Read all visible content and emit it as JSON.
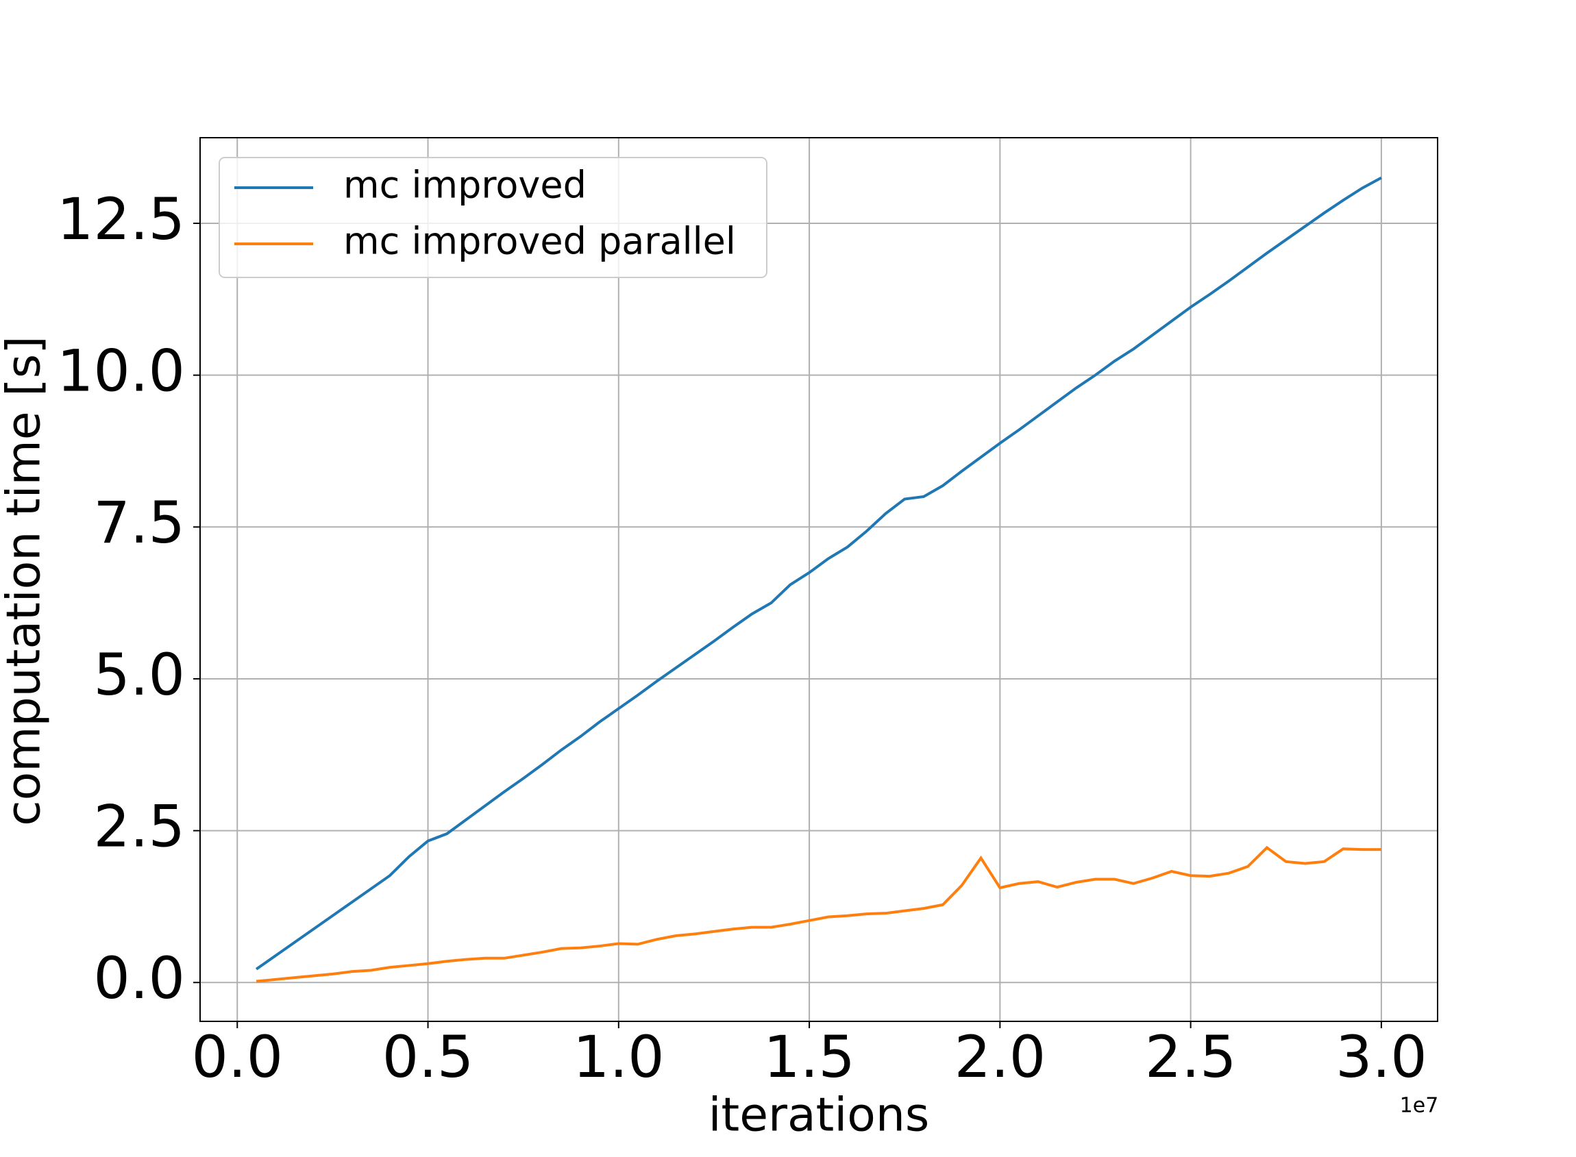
{
  "chart_data": {
    "type": "line",
    "xlabel": "iterations",
    "ylabel": "computation time [s]",
    "x_offset_label": "1e7",
    "x": [
      0.05,
      0.1,
      0.15,
      0.2,
      0.25,
      0.3,
      0.35,
      0.4,
      0.45,
      0.5,
      0.55,
      0.6,
      0.65,
      0.7,
      0.75,
      0.8,
      0.85,
      0.9,
      0.95,
      1.0,
      1.05,
      1.1,
      1.15,
      1.2,
      1.25,
      1.3,
      1.35,
      1.4,
      1.45,
      1.5,
      1.55,
      1.6,
      1.65,
      1.7,
      1.75,
      1.8,
      1.85,
      1.9,
      1.95,
      2.0,
      2.05,
      2.1,
      2.15,
      2.2,
      2.25,
      2.3,
      2.35,
      2.4,
      2.45,
      2.5,
      2.55,
      2.6,
      2.65,
      2.7,
      2.75,
      2.8,
      2.85,
      2.9,
      2.95,
      3.0
    ],
    "series": [
      {
        "name": "mc improved",
        "color": "#1f77b4",
        "values": [
          0.22,
          0.44,
          0.66,
          0.88,
          1.1,
          1.32,
          1.54,
          1.76,
          2.07,
          2.33,
          2.45,
          2.68,
          2.91,
          3.14,
          3.36,
          3.59,
          3.83,
          4.05,
          4.29,
          4.51,
          4.73,
          4.96,
          5.18,
          5.4,
          5.62,
          5.85,
          6.07,
          6.25,
          6.55,
          6.75,
          6.98,
          7.17,
          7.43,
          7.72,
          7.96,
          8.0,
          8.18,
          8.42,
          8.65,
          8.88,
          9.1,
          9.33,
          9.56,
          9.79,
          10.0,
          10.23,
          10.43,
          10.66,
          10.89,
          11.12,
          11.33,
          11.55,
          11.78,
          12.01,
          12.23,
          12.45,
          12.67,
          12.88,
          13.08,
          13.25
        ]
      },
      {
        "name": "mc improved parallel",
        "color": "#ff7f0e",
        "values": [
          0.02,
          0.05,
          0.08,
          0.11,
          0.14,
          0.18,
          0.2,
          0.25,
          0.28,
          0.31,
          0.35,
          0.38,
          0.4,
          0.4,
          0.45,
          0.5,
          0.56,
          0.57,
          0.6,
          0.64,
          0.63,
          0.71,
          0.77,
          0.8,
          0.84,
          0.88,
          0.91,
          0.91,
          0.96,
          1.02,
          1.08,
          1.1,
          1.13,
          1.14,
          1.18,
          1.22,
          1.28,
          1.6,
          2.05,
          1.56,
          1.63,
          1.66,
          1.57,
          1.65,
          1.7,
          1.7,
          1.63,
          1.72,
          1.83,
          1.76,
          1.75,
          1.8,
          1.91,
          2.22,
          1.99,
          1.96,
          1.99,
          2.2,
          2.19,
          2.19
        ]
      }
    ],
    "xlim": [
      -0.0975,
      3.1475
    ],
    "ylim": [
      -0.64,
      13.91
    ],
    "xticks": [
      {
        "value": 0,
        "label": "0.0"
      },
      0.5,
      {
        "value": 1,
        "label": "1.0"
      },
      1.5,
      {
        "value": 2,
        "label": "2.0"
      },
      2.5,
      {
        "value": 3,
        "label": "3.0"
      }
    ],
    "yticks": [
      {
        "value": 0,
        "label": "0.0"
      },
      2.5,
      {
        "value": 5,
        "label": "5.0"
      },
      7.5,
      {
        "value": 10,
        "label": "10.0"
      },
      12.5
    ],
    "grid": true,
    "legend": "upper left"
  }
}
